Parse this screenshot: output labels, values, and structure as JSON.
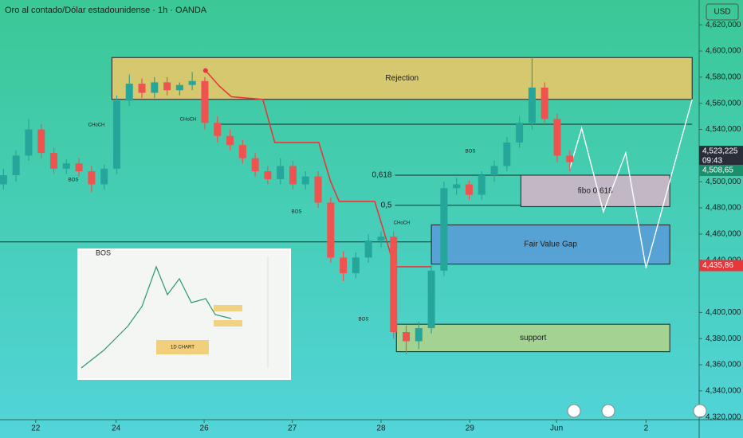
{
  "chart_data": {
    "type": "candlestick",
    "title": "Oro al contado/Dólar estadounidense · 1h · OANDA",
    "currency": "USD",
    "xlim": [
      0,
      100
    ],
    "ylim": [
      4318,
      4639
    ],
    "xticks": [
      {
        "value": 5.1,
        "label": "22"
      },
      {
        "value": 16.6,
        "label": "24"
      },
      {
        "value": 29.2,
        "label": "26"
      },
      {
        "value": 41.8,
        "label": "27"
      },
      {
        "value": 54.5,
        "label": "28"
      },
      {
        "value": 67.2,
        "label": "29"
      },
      {
        "value": 79.6,
        "label": "Jun"
      },
      {
        "value": 92.4,
        "label": "2"
      }
    ],
    "yticks": [
      {
        "value": 4620,
        "label": "4,620,000"
      },
      {
        "value": 4600,
        "label": "4,600,000"
      },
      {
        "value": 4580,
        "label": "4,580,000"
      },
      {
        "value": 4560,
        "label": "4,560,000"
      },
      {
        "value": 4540,
        "label": "4,540,000"
      },
      {
        "value": 4500,
        "label": "4,500,000"
      },
      {
        "value": 4480,
        "label": "4,480,000"
      },
      {
        "value": 4460,
        "label": "4,460,000"
      },
      {
        "value": 4440,
        "label": "4,440,000"
      },
      {
        "value": 4400,
        "label": "4,400,000"
      },
      {
        "value": 4380,
        "label": "4,380,000"
      },
      {
        "value": 4360,
        "label": "4,360,000"
      },
      {
        "value": 4340,
        "label": "4,340,000"
      },
      {
        "value": 4320,
        "label": "4,320,000"
      }
    ],
    "up_color": "#26a69a",
    "down_color": "#ef5350",
    "x": [
      0.5,
      2.3,
      4.1,
      5.9,
      7.7,
      9.5,
      11.3,
      13.1,
      14.9,
      16.7,
      18.5,
      20.3,
      22.1,
      23.9,
      25.7,
      27.5,
      29.3,
      31.1,
      32.9,
      34.7,
      36.5,
      38.3,
      40.1,
      41.9,
      43.7,
      45.5,
      47.3,
      49.1,
      50.9,
      52.7,
      54.5,
      56.3,
      58.1,
      59.9,
      61.7,
      63.5,
      65.3,
      67.1,
      68.9,
      70.7,
      72.5,
      74.3,
      76.1,
      77.9,
      79.7,
      81.5
    ],
    "open": [
      4498,
      4505,
      4520,
      4540,
      4522,
      4510,
      4514,
      4508,
      4498,
      4510,
      4562,
      4575,
      4568,
      4576,
      4570,
      4574,
      4577,
      4545,
      4535,
      4528,
      4518,
      4508,
      4502,
      4512,
      4498,
      4504,
      4484,
      4442,
      4430,
      4442,
      4455,
      4458,
      4385,
      4378,
      4388,
      4432,
      4495,
      4498,
      4490,
      4505,
      4512,
      4530,
      4545,
      4572,
      4548,
      4520
    ],
    "high": [
      4510,
      4524,
      4548,
      4544,
      4526,
      4517,
      4518,
      4512,
      4513,
      4566,
      4582,
      4579,
      4580,
      4580,
      4576,
      4584,
      4580,
      4550,
      4540,
      4532,
      4522,
      4512,
      4518,
      4516,
      4508,
      4508,
      4488,
      4447,
      4446,
      4460,
      4462,
      4462,
      4390,
      4393,
      4436,
      4500,
      4503,
      4501,
      4508,
      4516,
      4534,
      4550,
      4595,
      4576,
      4552,
      4524
    ],
    "low": [
      4494,
      4500,
      4516,
      4518,
      4506,
      4506,
      4504,
      4492,
      4494,
      4506,
      4558,
      4564,
      4564,
      4566,
      4566,
      4570,
      4540,
      4530,
      4524,
      4514,
      4504,
      4498,
      4498,
      4494,
      4494,
      4480,
      4438,
      4424,
      4426,
      4438,
      4450,
      4380,
      4368,
      4372,
      4384,
      4428,
      4490,
      4486,
      4486,
      4500,
      4508,
      4526,
      4540,
      4544,
      4515,
      4508
    ],
    "close": [
      4505,
      4520,
      4540,
      4522,
      4510,
      4514,
      4508,
      4498,
      4510,
      4562,
      4575,
      4568,
      4576,
      4570,
      4574,
      4577,
      4545,
      4535,
      4528,
      4518,
      4508,
      4502,
      4512,
      4498,
      4504,
      4484,
      4442,
      4430,
      4442,
      4455,
      4458,
      4385,
      4378,
      4388,
      4432,
      4495,
      4498,
      4490,
      4505,
      4512,
      4530,
      4545,
      4572,
      4548,
      4520,
      4515
    ],
    "zones": [
      {
        "label": "Rejection",
        "from": 4563,
        "to": 4595,
        "x0": 16,
        "x1": 99,
        "color": "#f0c865"
      },
      {
        "label": "fibo 0.618",
        "from": 4481,
        "to": 4505,
        "x0": 74.5,
        "x1": 95.8,
        "color": "#d8b4c8"
      },
      {
        "label": "Fair Value Gap",
        "from": 4437,
        "to": 4467,
        "x0": 61.7,
        "x1": 95.8,
        "color": "#5a9ad8"
      },
      {
        "label": "support",
        "from": 4370,
        "to": 4391,
        "x0": 56.7,
        "x1": 95.8,
        "color": "#b3d28a"
      }
    ],
    "levels": [
      {
        "value": 4544,
        "x0": 30.8,
        "x1": 99
      },
      {
        "value": 4454,
        "x0": 0,
        "x1": 61.7
      },
      {
        "value": 4505,
        "x0": 56.5,
        "x1": 74.5,
        "label": "0,618"
      },
      {
        "value": 4482,
        "x0": 56.5,
        "x1": 74.5,
        "label": "0,5"
      }
    ],
    "trail": {
      "color": "#e8373a",
      "x": [
        29.4,
        31.4,
        33.1,
        37.6,
        39.3,
        45.6,
        47.3,
        48.5,
        53.6,
        55.3,
        56.4,
        61.7
      ],
      "values": [
        4585,
        4573,
        4565,
        4563,
        4530,
        4530,
        4500,
        4485,
        4485,
        4455,
        4435,
        4435
      ]
    },
    "projection": {
      "color": "#ffffff",
      "x": [
        81.5,
        83.2,
        86.3,
        89.5,
        92.4,
        99
      ],
      "values": [
        4510,
        4541,
        4477,
        4522,
        4434,
        4563
      ]
    },
    "annotations": [
      "CHoCH",
      "CHoCH",
      "BOS",
      "BOS",
      "BOS",
      "BOS",
      "CHoCH"
    ],
    "price_labels": [
      {
        "value": 4523.225,
        "label": "4,523,225",
        "time": "09:43",
        "color": "#2a2e39"
      },
      {
        "value": 4508.65,
        "label": "4,508,65",
        "color": "#1b8f6a"
      },
      {
        "value": 4435.86,
        "label": "4,435,86",
        "color": "#e8373a"
      }
    ],
    "inset": {
      "labels": [
        "BOS",
        "1D CHART"
      ]
    }
  }
}
